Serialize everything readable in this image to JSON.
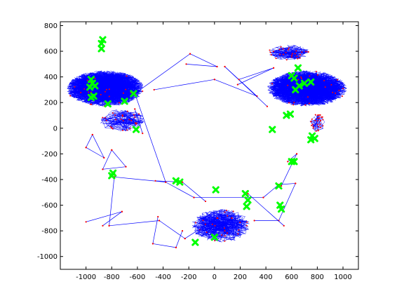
{
  "chart_data": {
    "type": "scatter",
    "title": "",
    "xlabel": "",
    "ylabel": "",
    "xlim": [
      -1200,
      1120
    ],
    "ylim": [
      -1100,
      830
    ],
    "xticks": [
      -1000,
      -800,
      -600,
      -400,
      -200,
      0,
      200,
      400,
      600,
      800,
      1000
    ],
    "yticks": [
      -1000,
      -800,
      -600,
      -400,
      -200,
      0,
      200,
      400,
      600,
      800
    ],
    "grid": false,
    "legend": "none",
    "colors": {
      "network_edges": "#0000ff",
      "network_nodes": "#ff0000",
      "highlighted_markers": "#00ff00"
    },
    "clusters": [
      {
        "cx": -850,
        "cy": 310,
        "rx": 300,
        "ry": 140,
        "count": 1400
      },
      {
        "cx": 720,
        "cy": 310,
        "rx": 310,
        "ry": 140,
        "count": 1400
      },
      {
        "cx": 580,
        "cy": 590,
        "rx": 160,
        "ry": 60,
        "count": 160
      },
      {
        "cx": -720,
        "cy": 60,
        "rx": 180,
        "ry": 90,
        "count": 160
      },
      {
        "cx": 50,
        "cy": -760,
        "rx": 230,
        "ry": 130,
        "count": 380
      },
      {
        "cx": 800,
        "cy": 40,
        "rx": 60,
        "ry": 70,
        "count": 60
      }
    ],
    "links": [
      [
        -620,
        270,
        -380,
        -420
      ],
      [
        -620,
        270,
        -190,
        580
      ],
      [
        -190,
        580,
        20,
        480
      ],
      [
        20,
        480,
        -220,
        500
      ],
      [
        -470,
        300,
        0,
        380
      ],
      [
        0,
        380,
        330,
        250
      ],
      [
        330,
        250,
        80,
        480
      ],
      [
        80,
        480,
        410,
        170
      ],
      [
        -380,
        -420,
        -780,
        -380
      ],
      [
        -780,
        -380,
        -820,
        -760
      ],
      [
        -820,
        -760,
        -430,
        -720
      ],
      [
        -430,
        -720,
        -230,
        -860
      ],
      [
        -230,
        -860,
        20,
        -700
      ],
      [
        -380,
        -420,
        -160,
        -540
      ],
      [
        -160,
        -540,
        380,
        -540
      ],
      [
        380,
        -540,
        500,
        -440
      ],
      [
        500,
        -440,
        630,
        -430
      ],
      [
        630,
        -430,
        500,
        -720
      ],
      [
        500,
        -720,
        310,
        -720
      ],
      [
        570,
        -260,
        640,
        -200
      ],
      [
        640,
        -200,
        520,
        -450
      ],
      [
        -870,
        -760,
        -720,
        -650
      ],
      [
        -720,
        -650,
        -1000,
        -730
      ],
      [
        -460,
        -410,
        -250,
        -420
      ],
      [
        -250,
        -420,
        -70,
        -570
      ],
      [
        260,
        -510,
        540,
        -760
      ],
      [
        -440,
        -690,
        -480,
        -900
      ],
      [
        -480,
        -900,
        -300,
        -930
      ],
      [
        -300,
        -930,
        -250,
        -800
      ],
      [
        190,
        380,
        460,
        470
      ],
      [
        460,
        470,
        180,
        340
      ],
      [
        -560,
        -40,
        -620,
        150
      ],
      [
        -950,
        -50,
        -860,
        -230
      ],
      [
        -860,
        -230,
        -1000,
        -150
      ],
      [
        -1000,
        -150,
        -950,
        -50
      ],
      [
        -800,
        -170,
        -690,
        -300
      ],
      [
        -690,
        -300,
        -870,
        -320
      ],
      [
        -870,
        -320,
        -800,
        -170
      ]
    ],
    "highlighted_markers": [
      {
        "x": -870,
        "y": 690
      },
      {
        "x": -880,
        "y": 660
      },
      {
        "x": -880,
        "y": 620
      },
      {
        "x": -960,
        "y": 380
      },
      {
        "x": -950,
        "y": 350
      },
      {
        "x": -970,
        "y": 320
      },
      {
        "x": -930,
        "y": 330
      },
      {
        "x": -940,
        "y": 250
      },
      {
        "x": -960,
        "y": 240
      },
      {
        "x": -830,
        "y": 190
      },
      {
        "x": -700,
        "y": 210
      },
      {
        "x": -630,
        "y": 270
      },
      {
        "x": -610,
        "y": -10
      },
      {
        "x": 650,
        "y": 470
      },
      {
        "x": 600,
        "y": 410
      },
      {
        "x": 620,
        "y": 390
      },
      {
        "x": 700,
        "y": 350
      },
      {
        "x": 750,
        "y": 360
      },
      {
        "x": 660,
        "y": 330
      },
      {
        "x": 630,
        "y": 300
      },
      {
        "x": 560,
        "y": 100
      },
      {
        "x": 590,
        "y": 110
      },
      {
        "x": 450,
        "y": -10
      },
      {
        "x": 760,
        "y": -60
      },
      {
        "x": 780,
        "y": -80
      },
      {
        "x": 750,
        "y": -90
      },
      {
        "x": 600,
        "y": -260
      },
      {
        "x": 620,
        "y": -260
      },
      {
        "x": -790,
        "y": -350
      },
      {
        "x": -800,
        "y": -370
      },
      {
        "x": -300,
        "y": -410
      },
      {
        "x": -270,
        "y": -420
      },
      {
        "x": 10,
        "y": -480
      },
      {
        "x": 240,
        "y": -510
      },
      {
        "x": 260,
        "y": -560
      },
      {
        "x": 250,
        "y": -610
      },
      {
        "x": 500,
        "y": -450
      },
      {
        "x": 510,
        "y": -600
      },
      {
        "x": 520,
        "y": -630
      },
      {
        "x": -150,
        "y": -890
      },
      {
        "x": 0,
        "y": -850
      }
    ]
  }
}
